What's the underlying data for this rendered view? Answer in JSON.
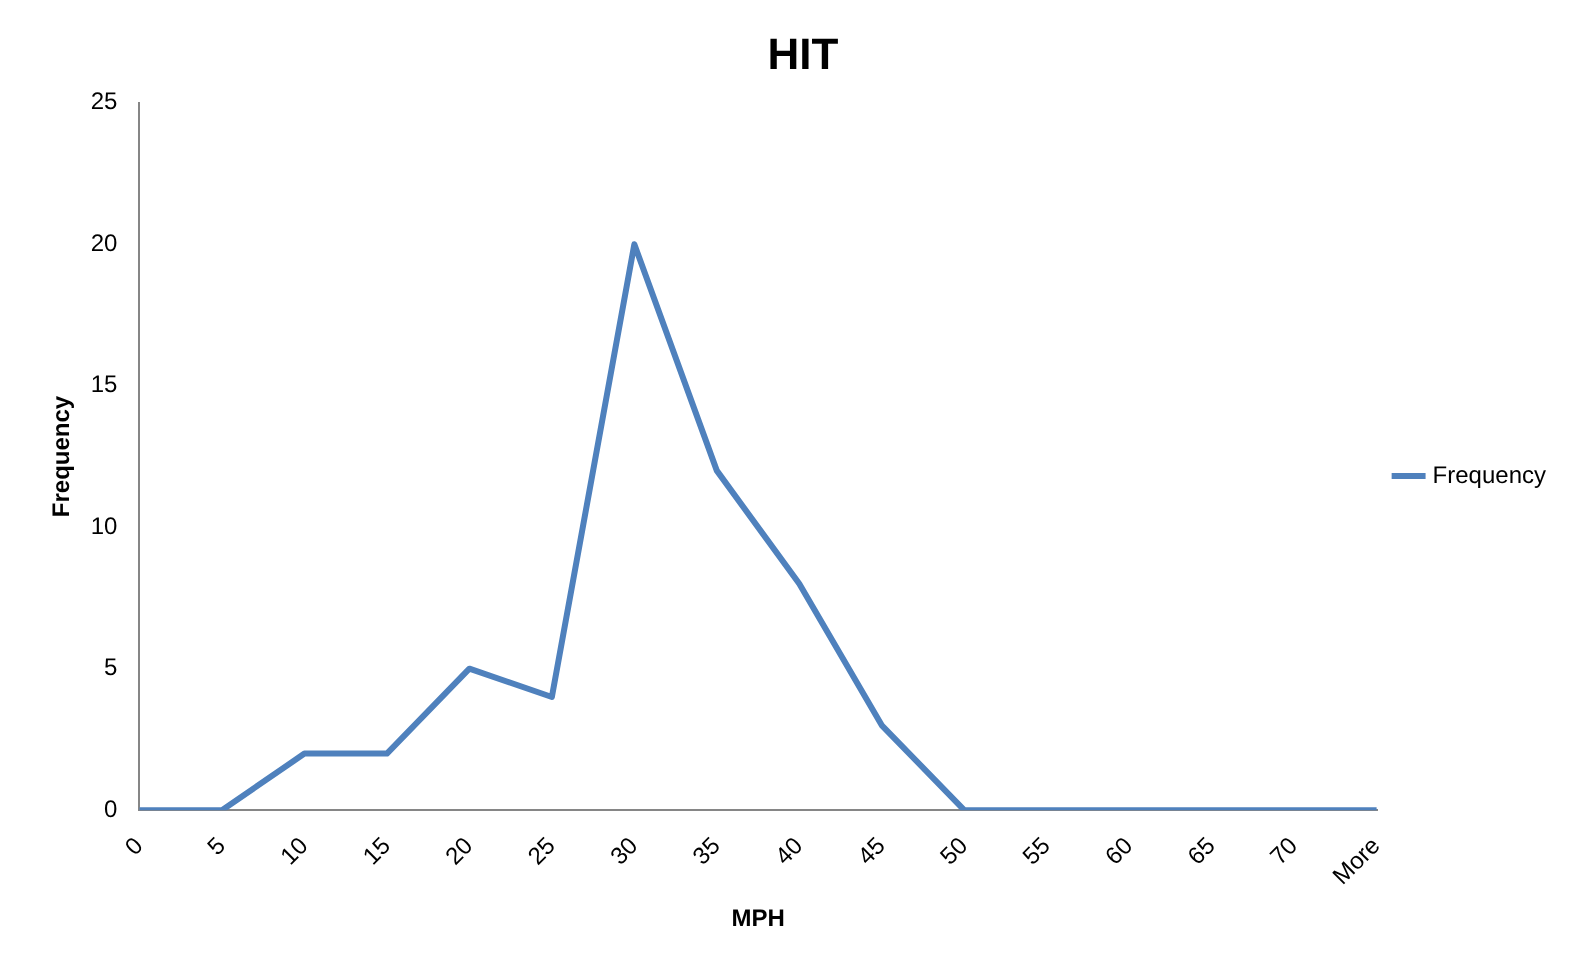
{
  "chart_data": {
    "type": "line",
    "title": "HIT",
    "xlabel": "MPH",
    "ylabel": "Frequency",
    "categories": [
      "0",
      "5",
      "10",
      "15",
      "20",
      "25",
      "30",
      "35",
      "40",
      "45",
      "50",
      "55",
      "60",
      "65",
      "70",
      "More"
    ],
    "series": [
      {
        "name": "Frequency",
        "color": "#4f81bd",
        "values": [
          0,
          0,
          2,
          2,
          5,
          4,
          20,
          12,
          8,
          3,
          0,
          0,
          0,
          0,
          0,
          0
        ]
      }
    ],
    "ylim": [
      0,
      25
    ],
    "yticks": [
      0,
      5,
      10,
      15,
      20,
      25
    ],
    "grid": false,
    "legend": "right",
    "marker": "none"
  }
}
